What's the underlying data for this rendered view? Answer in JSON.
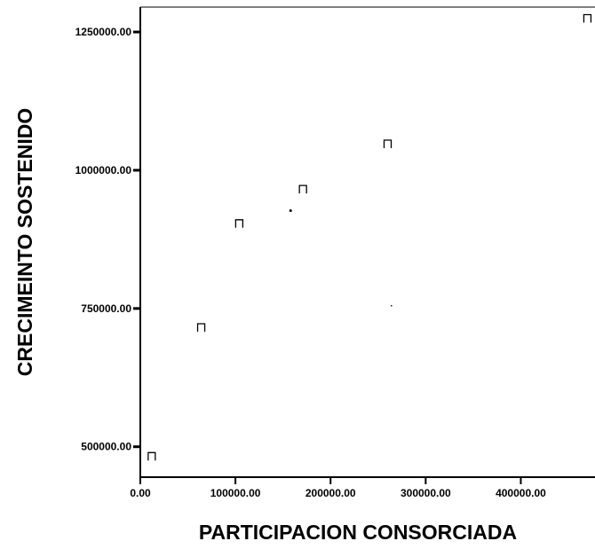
{
  "chart_data": {
    "type": "scatter",
    "xlabel": "PARTICIPACION CONSORCIADA",
    "ylabel": "CRECIMEINTO SOSTENIDO",
    "xlim": [
      0,
      478000
    ],
    "ylim": [
      445000,
      1295000
    ],
    "x_ticks": [
      {
        "value": 0,
        "label": "0.00"
      },
      {
        "value": 100000,
        "label": "100000.00"
      },
      {
        "value": 200000,
        "label": "200000.00"
      },
      {
        "value": 300000,
        "label": "300000.00"
      },
      {
        "value": 400000,
        "label": "400000.00"
      }
    ],
    "y_ticks": [
      {
        "value": 500000,
        "label": "500000.00"
      },
      {
        "value": 750000,
        "label": "750000.00"
      },
      {
        "value": 1000000,
        "label": "1000000.00"
      },
      {
        "value": 1250000,
        "label": "1250000.00"
      }
    ],
    "points": [
      {
        "x": 12000,
        "y": 483000
      },
      {
        "x": 64000,
        "y": 716000
      },
      {
        "x": 104000,
        "y": 904000
      },
      {
        "x": 171000,
        "y": 966000
      },
      {
        "x": 260000,
        "y": 1048000
      },
      {
        "x": 470000,
        "y": 1275000
      }
    ],
    "minor_points": [
      {
        "x": 158000,
        "y": 927000
      },
      {
        "x": 264000,
        "y": 755000
      }
    ],
    "marker_color": "#000000",
    "grid": false,
    "legend": "none"
  }
}
